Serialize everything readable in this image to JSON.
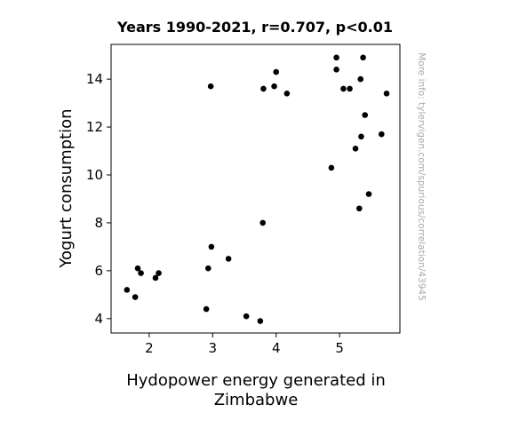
{
  "chart_data": {
    "type": "scatter",
    "title": "Years 1990-2021, r=0.707, p<0.01",
    "xlabel": [
      "Hydopower energy generated in",
      "Zimbabwe"
    ],
    "ylabel": "Yogurt consumption",
    "side_note": "More info: tylervigen.com/spurious/correlation/43945",
    "xlim": [
      1.4,
      5.95
    ],
    "ylim": [
      3.4,
      15.45
    ],
    "xticks": [
      2,
      3,
      4,
      5
    ],
    "yticks": [
      4,
      6,
      8,
      10,
      12,
      14
    ],
    "grid": false,
    "point_color": "#000000",
    "points": [
      {
        "x": 1.65,
        "y": 5.2
      },
      {
        "x": 1.78,
        "y": 4.9
      },
      {
        "x": 1.82,
        "y": 6.1
      },
      {
        "x": 1.87,
        "y": 5.9
      },
      {
        "x": 2.1,
        "y": 5.7
      },
      {
        "x": 2.15,
        "y": 5.9
      },
      {
        "x": 2.9,
        "y": 4.4
      },
      {
        "x": 2.93,
        "y": 6.1
      },
      {
        "x": 2.97,
        "y": 13.7
      },
      {
        "x": 2.98,
        "y": 7.0
      },
      {
        "x": 3.25,
        "y": 6.5
      },
      {
        "x": 3.53,
        "y": 4.1
      },
      {
        "x": 3.75,
        "y": 3.9
      },
      {
        "x": 3.79,
        "y": 8.0
      },
      {
        "x": 3.8,
        "y": 13.6
      },
      {
        "x": 3.97,
        "y": 13.7
      },
      {
        "x": 4.0,
        "y": 14.3
      },
      {
        "x": 4.17,
        "y": 13.4
      },
      {
        "x": 4.87,
        "y": 10.3
      },
      {
        "x": 4.95,
        "y": 14.9
      },
      {
        "x": 4.95,
        "y": 14.4
      },
      {
        "x": 5.06,
        "y": 13.6
      },
      {
        "x": 5.16,
        "y": 13.6
      },
      {
        "x": 5.25,
        "y": 11.1
      },
      {
        "x": 5.31,
        "y": 8.6
      },
      {
        "x": 5.33,
        "y": 14.0
      },
      {
        "x": 5.34,
        "y": 11.6
      },
      {
        "x": 5.37,
        "y": 14.9
      },
      {
        "x": 5.4,
        "y": 12.5
      },
      {
        "x": 5.46,
        "y": 9.2
      },
      {
        "x": 5.66,
        "y": 11.7
      },
      {
        "x": 5.74,
        "y": 13.4
      }
    ]
  }
}
